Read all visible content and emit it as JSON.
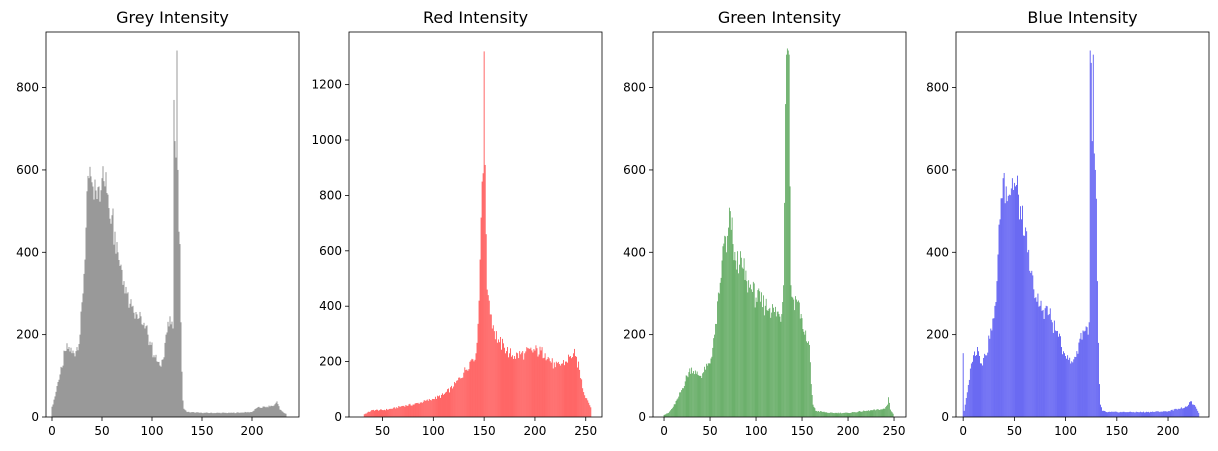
{
  "chart_data": [
    {
      "type": "bar",
      "title": "Grey Intensity",
      "color": "#808080",
      "xlim": [
        -6,
        247
      ],
      "ylim": [
        0,
        935
      ],
      "xticks": [
        0,
        50,
        100,
        150,
        200
      ],
      "yticks": [
        0,
        200,
        400,
        600,
        800
      ],
      "bins": [
        0,
        234
      ],
      "anchors": [
        [
          0,
          25
        ],
        [
          3,
          50
        ],
        [
          6,
          85
        ],
        [
          10,
          120
        ],
        [
          13,
          160
        ],
        [
          17,
          170
        ],
        [
          20,
          155
        ],
        [
          24,
          160
        ],
        [
          28,
          200
        ],
        [
          31,
          300
        ],
        [
          34,
          460
        ],
        [
          37,
          580
        ],
        [
          40,
          570
        ],
        [
          44,
          550
        ],
        [
          47,
          560
        ],
        [
          50,
          580
        ],
        [
          53,
          560
        ],
        [
          56,
          540
        ],
        [
          60,
          490
        ],
        [
          63,
          450
        ],
        [
          66,
          400
        ],
        [
          69,
          370
        ],
        [
          72,
          330
        ],
        [
          75,
          300
        ],
        [
          78,
          275
        ],
        [
          81,
          270
        ],
        [
          84,
          255
        ],
        [
          87,
          240
        ],
        [
          90,
          225
        ],
        [
          93,
          215
        ],
        [
          96,
          200
        ],
        [
          99,
          175
        ],
        [
          102,
          150
        ],
        [
          105,
          135
        ],
        [
          108,
          125
        ],
        [
          111,
          140
        ],
        [
          114,
          200
        ],
        [
          117,
          220
        ],
        [
          119,
          225
        ],
        [
          121,
          215
        ],
        [
          122,
          770
        ],
        [
          123,
          670
        ],
        [
          124,
          630
        ],
        [
          125,
          890
        ],
        [
          126,
          600
        ],
        [
          127,
          450
        ],
        [
          128,
          420
        ],
        [
          129,
          230
        ],
        [
          130,
          110
        ],
        [
          131,
          40
        ],
        [
          132,
          20
        ],
        [
          135,
          12
        ],
        [
          150,
          10
        ],
        [
          180,
          10
        ],
        [
          200,
          12
        ],
        [
          205,
          22
        ],
        [
          215,
          25
        ],
        [
          222,
          28
        ],
        [
          225,
          38
        ],
        [
          228,
          18
        ],
        [
          232,
          10
        ],
        [
          234,
          8
        ]
      ]
    },
    {
      "type": "bar",
      "title": "Red Intensity",
      "color": "#ff4444",
      "xlim": [
        17,
        266
      ],
      "ylim": [
        0,
        1390
      ],
      "xticks": [
        50,
        100,
        150,
        200,
        250
      ],
      "yticks": [
        0,
        200,
        400,
        600,
        800,
        1000,
        1200
      ],
      "bins": [
        32,
        255
      ],
      "anchors": [
        [
          32,
          10
        ],
        [
          40,
          25
        ],
        [
          50,
          25
        ],
        [
          60,
          30
        ],
        [
          70,
          40
        ],
        [
          80,
          45
        ],
        [
          90,
          55
        ],
        [
          100,
          65
        ],
        [
          110,
          80
        ],
        [
          120,
          110
        ],
        [
          130,
          160
        ],
        [
          138,
          210
        ],
        [
          142,
          230
        ],
        [
          145,
          420
        ],
        [
          147,
          720
        ],
        [
          148,
          850
        ],
        [
          149,
          880
        ],
        [
          150,
          1320
        ],
        [
          151,
          910
        ],
        [
          152,
          660
        ],
        [
          153,
          460
        ],
        [
          154,
          440
        ],
        [
          155,
          420
        ],
        [
          157,
          370
        ],
        [
          160,
          310
        ],
        [
          165,
          270
        ],
        [
          170,
          250
        ],
        [
          175,
          230
        ],
        [
          180,
          220
        ],
        [
          190,
          230
        ],
        [
          200,
          240
        ],
        [
          210,
          230
        ],
        [
          220,
          180
        ],
        [
          230,
          200
        ],
        [
          235,
          220
        ],
        [
          238,
          230
        ],
        [
          240,
          220
        ],
        [
          244,
          170
        ],
        [
          248,
          90
        ],
        [
          252,
          60
        ],
        [
          255,
          35
        ]
      ]
    },
    {
      "type": "bar",
      "title": "Green Intensity",
      "color": "#4c9f4c",
      "xlim": [
        -12,
        263
      ],
      "ylim": [
        0,
        935
      ],
      "xticks": [
        0,
        50,
        100,
        150,
        200,
        250
      ],
      "yticks": [
        0,
        200,
        400,
        600,
        800
      ],
      "bins": [
        0,
        249
      ],
      "anchors": [
        [
          0,
          5
        ],
        [
          5,
          10
        ],
        [
          10,
          25
        ],
        [
          15,
          45
        ],
        [
          20,
          70
        ],
        [
          25,
          100
        ],
        [
          30,
          120
        ],
        [
          35,
          105
        ],
        [
          40,
          100
        ],
        [
          45,
          115
        ],
        [
          50,
          130
        ],
        [
          55,
          200
        ],
        [
          60,
          300
        ],
        [
          63,
          380
        ],
        [
          66,
          440
        ],
        [
          68,
          400
        ],
        [
          70,
          460
        ],
        [
          72,
          500
        ],
        [
          75,
          420
        ],
        [
          78,
          380
        ],
        [
          82,
          370
        ],
        [
          86,
          360
        ],
        [
          90,
          330
        ],
        [
          95,
          310
        ],
        [
          100,
          290
        ],
        [
          105,
          280
        ],
        [
          110,
          270
        ],
        [
          115,
          265
        ],
        [
          120,
          255
        ],
        [
          125,
          250
        ],
        [
          128,
          250
        ],
        [
          130,
          320
        ],
        [
          131,
          520
        ],
        [
          132,
          760
        ],
        [
          133,
          880
        ],
        [
          134,
          895
        ],
        [
          135,
          890
        ],
        [
          136,
          880
        ],
        [
          137,
          560
        ],
        [
          138,
          320
        ],
        [
          140,
          290
        ],
        [
          145,
          280
        ],
        [
          150,
          240
        ],
        [
          153,
          200
        ],
        [
          156,
          180
        ],
        [
          158,
          175
        ],
        [
          160,
          80
        ],
        [
          162,
          30
        ],
        [
          165,
          15
        ],
        [
          180,
          10
        ],
        [
          200,
          10
        ],
        [
          220,
          15
        ],
        [
          235,
          18
        ],
        [
          240,
          20
        ],
        [
          243,
          30
        ],
        [
          244,
          48
        ],
        [
          246,
          18
        ],
        [
          249,
          8
        ]
      ]
    },
    {
      "type": "bar",
      "title": "Blue Intensity",
      "color": "#4a4af0",
      "xlim": [
        -7,
        240
      ],
      "ylim": [
        0,
        935
      ],
      "xticks": [
        0,
        50,
        100,
        150,
        200
      ],
      "yticks": [
        0,
        200,
        400,
        600,
        800
      ],
      "bins": [
        0,
        230
      ],
      "anchors": [
        [
          0,
          155
        ],
        [
          1,
          15
        ],
        [
          2,
          30
        ],
        [
          4,
          60
        ],
        [
          6,
          90
        ],
        [
          8,
          130
        ],
        [
          10,
          150
        ],
        [
          14,
          170
        ],
        [
          18,
          130
        ],
        [
          22,
          150
        ],
        [
          26,
          190
        ],
        [
          30,
          240
        ],
        [
          33,
          330
        ],
        [
          36,
          480
        ],
        [
          39,
          580
        ],
        [
          42,
          560
        ],
        [
          45,
          540
        ],
        [
          48,
          580
        ],
        [
          51,
          560
        ],
        [
          54,
          540
        ],
        [
          57,
          480
        ],
        [
          60,
          440
        ],
        [
          63,
          400
        ],
        [
          66,
          350
        ],
        [
          69,
          310
        ],
        [
          72,
          280
        ],
        [
          75,
          270
        ],
        [
          78,
          260
        ],
        [
          81,
          270
        ],
        [
          84,
          250
        ],
        [
          87,
          230
        ],
        [
          90,
          210
        ],
        [
          93,
          195
        ],
        [
          96,
          170
        ],
        [
          99,
          155
        ],
        [
          102,
          150
        ],
        [
          105,
          130
        ],
        [
          108,
          140
        ],
        [
          111,
          160
        ],
        [
          114,
          190
        ],
        [
          117,
          210
        ],
        [
          120,
          220
        ],
        [
          122,
          200
        ],
        [
          123,
          230
        ],
        [
          124,
          890
        ],
        [
          125,
          860
        ],
        [
          126,
          670
        ],
        [
          127,
          880
        ],
        [
          128,
          640
        ],
        [
          129,
          600
        ],
        [
          130,
          530
        ],
        [
          131,
          330
        ],
        [
          132,
          180
        ],
        [
          133,
          80
        ],
        [
          134,
          30
        ],
        [
          136,
          15
        ],
        [
          140,
          12
        ],
        [
          160,
          12
        ],
        [
          180,
          12
        ],
        [
          200,
          14
        ],
        [
          210,
          20
        ],
        [
          218,
          25
        ],
        [
          222,
          38
        ],
        [
          225,
          30
        ],
        [
          228,
          20
        ],
        [
          230,
          10
        ]
      ]
    }
  ]
}
